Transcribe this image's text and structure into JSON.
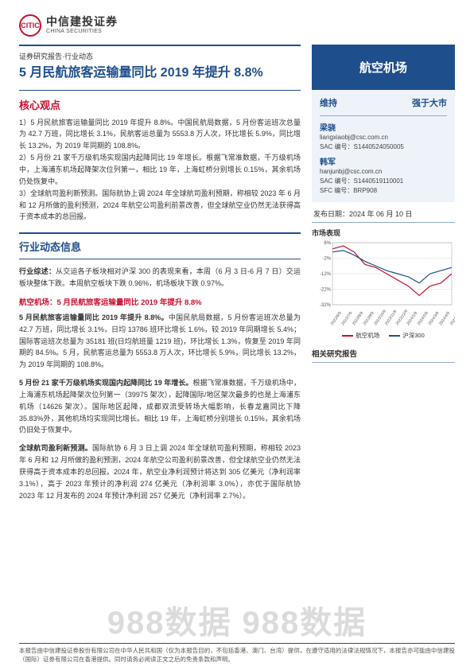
{
  "logo": {
    "cn": "中信建投证券",
    "en": "CHINA SECURITIES",
    "badge": "CITIC"
  },
  "report_tag": "证券研究报告·行业动态",
  "main_title": "5 月民航旅客运输量同比 2019 年提升 8.8%",
  "core_title": "核心观点",
  "core_points": [
    "1）5 月民航旅客运输量同比 2019 年提升 8.8%。中国民航局数据，5 月份客运班次总量为 42.7 万班，同比增长 3.1%，民航客运总量为 5553.8 万人次，环比增长 5.9%，同比增长 13.2%，为 2019 年同期的 108.8%。",
    "2）5 月份 21 家千万级机场实现国内起降同比 19 年增长。根据飞常准数据，千万级机场中，上海浦东机场起降架次位列第一，相比 19 年，上海虹桥分别增长 0.15%，其余机场仍处恢复中。",
    "3）全球航司盈利新预测。国际航协上调 2024 年全球航司盈利预期，称相较 2023 年 6 月和 12 月所做的盈利预测，2024 年航空公司盈利前景改善，但全球航空业仍然无法获得高于资本成本的总回报。"
  ],
  "industry_title": "行业动态信息",
  "industry_summary_lead": "行业综述：",
  "industry_summary": "从交运各子板块相对沪深 300 的表现来看，本周（6 月 3 日-6 月 7 日）交运板块整体下跌。本周航空板块下跌 0.96%，机场板块下跌 0.97%。",
  "para_red": "航空机场：5 月民航旅客运输量同比 2019 年提升 8.8%",
  "paras": [
    {
      "lead": "5 月民航旅客运输量同比 2019 年提升 8.8%。",
      "body": "中国民航局数据，5 月份客运班次总量为 42.7 万班，同比增长 3.1%，日均 13786 班环比增长 1.6%，较 2019 年同期增长 5.4%；国际客运班次总量为 35181 班(日均航班量 1219 班)，环比增长 1.3%，恢复至 2019 年同期的 84.5%。5 月，民航客运总量为 5553.8 万人次，环比增长 5.9%，同比增长 13.2%，为 2019 年同期的 108.8%。"
    },
    {
      "lead": "5 月份 21 家千万级机场实现国内起降同比 19 年增长。",
      "body": "根据飞常准数据，千万级机场中，上海浦东机场起降架次位列第一（39975 架次），起降国际/地区架次最多的也是上海浦东机场（14626 架次）。国际地区起降，成都双流受转场大幅影响，长春龙嘉同比下降 35.83%外，其他机场均实现同比增长。相比 19 年，上海虹桥分别增长 0.15%，其余机场仍旧处于恢复中。"
    },
    {
      "lead": "全球航司盈利新预测。",
      "body": "国际航协 6 月 3 日上调 2024 年全球航司盈利预期，称相较 2023 年 6 月和 12 月所做的盈利预测，2024 年航空公司盈利前景改善，但全球航空业仍然无法获得高于资本成本的总回报。2024 年，航空业净利润预计将达到 305 亿美元（净利润率 3.1%），高于 2023 年预计的净利润 274 亿美元（净利润率 3.0%），亦优于国际航协 2023 年 12 月发布的 2024 年预计净利润 257 亿美元（净利润率 2.7%）。"
    }
  ],
  "right": {
    "sector": "航空机场",
    "rating_label": "维持",
    "rating_value": "强于大市",
    "analysts": [
      {
        "name": "梁骁",
        "email": "liangxiaobj@csc.com.cn",
        "sac": "SAC 编号：S1440524050005"
      },
      {
        "name": "韩军",
        "email": "hanjunbj@csc.com.cn",
        "sac": "SAC 编号：S1440519110001",
        "sfc": "SFC 编号：BRP908"
      }
    ],
    "pub_date_label": "发布日期：",
    "pub_date": "2024 年 06 月 10 日",
    "chart_title": "市场表现",
    "chart": {
      "y_ticks": [
        "8%",
        "-2%",
        "-12%",
        "-22%",
        "-32%"
      ],
      "x_ticks": [
        "2023/6/9",
        "2023/7/9",
        "2023/8/9",
        "2023/9/9",
        "2023/10/9",
        "2023/11/9",
        "2023/12/9",
        "2024/1/9",
        "2024/2/9",
        "2024/3/9",
        "2024/4/9",
        "2024/5/9"
      ],
      "series": [
        {
          "name": "航空机场",
          "color": "#c8102e",
          "points": [
            4,
            6,
            2,
            -6,
            -8,
            -12,
            -16,
            -20,
            -26,
            -20,
            -18,
            -12
          ]
        },
        {
          "name": "沪深300",
          "color": "#1f4e8c",
          "points": [
            2,
            3,
            0,
            -4,
            -7,
            -10,
            -12,
            -14,
            -18,
            -12,
            -10,
            -8
          ]
        }
      ],
      "y_min": -32,
      "y_max": 8
    },
    "related_title": "相关研究报告"
  },
  "footer": "本报告由中信建投证券股份有限公司在中华人民共和国（仅为本报告目的，不包括香港、澳门、台湾）提供，在遵守适用的法律法规情况下，本报告亦可能由中信建投（国际）证券有限公司在香港提供。同时请务必阅读正文之后的免责条款和声明。",
  "watermark": "988数据 988数据"
}
